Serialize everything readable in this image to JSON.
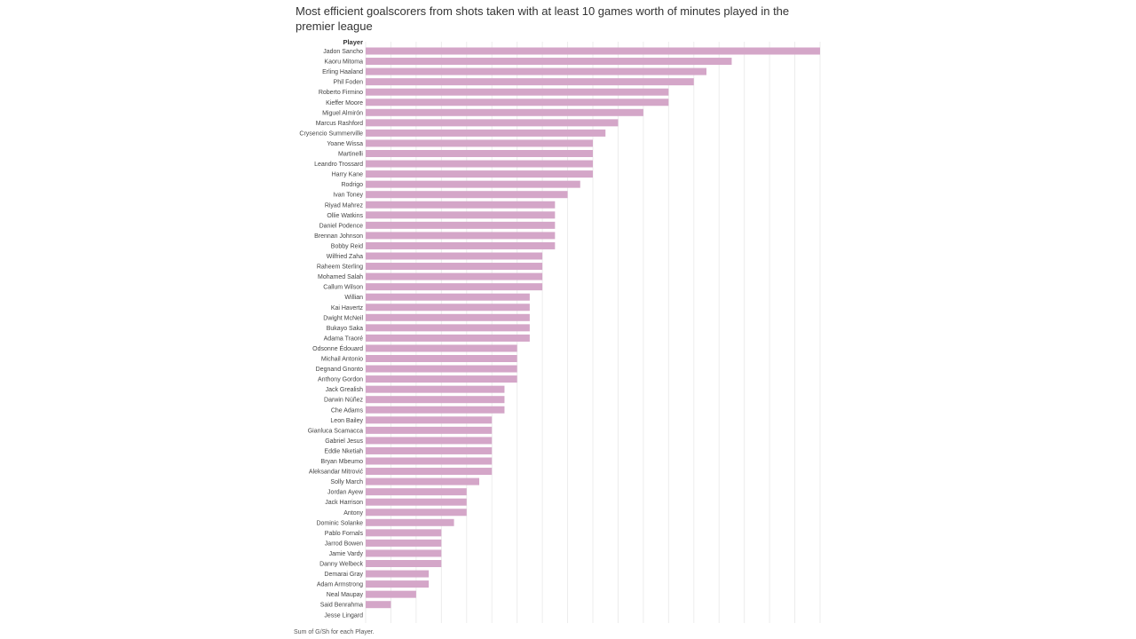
{
  "title": "Most efficient goalscorers from shots taken with at least 10 games worth of minutes played in the premier league",
  "footer": "Sum of G/Sh for each Player.",
  "chart_data": {
    "type": "bar",
    "orientation": "horizontal",
    "row_header": "Player",
    "measure": "G/Sh",
    "bar_color": "#d4a6c8",
    "grid": "vertical",
    "categories": [
      "Jadon Sancho",
      "Kaoru Mitoma",
      "Erling Haaland",
      "Phil Foden",
      "Roberto Firmino",
      "Kieffer Moore",
      "Miguel Almirón",
      "Marcus Rashford",
      "Crysencio Summerville",
      "Yoane Wissa",
      "Martinelli",
      "Leandro Trossard",
      "Harry Kane",
      "Rodrigo",
      "Ivan Toney",
      "Riyad Mahrez",
      "Ollie Watkins",
      "Daniel Podence",
      "Brennan Johnson",
      "Bobby Reid",
      "Wilfried Zaha",
      "Raheem Sterling",
      "Mohamed Salah",
      "Callum Wilson",
      "Willian",
      "Kai Havertz",
      "Dwight McNeil",
      "Bukayo Saka",
      "Adama Traoré",
      "Odsonne Édouard",
      "Michail Antonio",
      "Degnand Gnonto",
      "Anthony Gordon",
      "Jack Grealish",
      "Darwin Núñez",
      "Che Adams",
      "Leon Bailey",
      "Gianluca Scamacca",
      "Gabriel Jesus",
      "Eddie Nketiah",
      "Bryan Mbeumo",
      "Aleksandar Mitrović",
      "Solly March",
      "Jordan Ayew",
      "Jack Harrison",
      "Antony",
      "Dominic Solanke",
      "Pablo Fornals",
      "Jarrod Bowen",
      "Jamie Vardy",
      "Danny Welbeck",
      "Demarai Gray",
      "Adam Armstrong",
      "Neal Maupay",
      "Said Benrahma",
      "Jesse Lingard"
    ],
    "values": [
      0.36,
      0.29,
      0.27,
      0.26,
      0.24,
      0.24,
      0.22,
      0.2,
      0.19,
      0.18,
      0.18,
      0.18,
      0.18,
      0.17,
      0.16,
      0.15,
      0.15,
      0.15,
      0.15,
      0.15,
      0.14,
      0.14,
      0.14,
      0.14,
      0.13,
      0.13,
      0.13,
      0.13,
      0.13,
      0.12,
      0.12,
      0.12,
      0.12,
      0.11,
      0.11,
      0.11,
      0.1,
      0.1,
      0.1,
      0.1,
      0.1,
      0.1,
      0.09,
      0.08,
      0.08,
      0.08,
      0.07,
      0.06,
      0.06,
      0.06,
      0.06,
      0.05,
      0.05,
      0.04,
      0.02,
      0.0
    ],
    "xlim": [
      0,
      0.38
    ],
    "grid_step": 0.02
  }
}
